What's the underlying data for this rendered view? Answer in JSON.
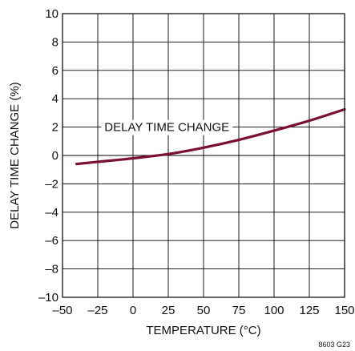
{
  "figure_id": "8603 G23",
  "chart_data": {
    "type": "line",
    "xlabel": "TEMPERATURE (°C)",
    "ylabel": "DELAY TIME CHANGE (%)",
    "xlim": [
      -50,
      150
    ],
    "ylim": [
      -10,
      10
    ],
    "x_ticks": [
      -50,
      -25,
      0,
      25,
      50,
      75,
      100,
      125,
      150
    ],
    "y_ticks": [
      -10,
      -8,
      -6,
      -4,
      -2,
      0,
      2,
      4,
      6,
      8,
      10
    ],
    "x_tick_labels": [
      "–50",
      "–25",
      "0",
      "25",
      "50",
      "75",
      "100",
      "125",
      "150"
    ],
    "y_tick_labels": [
      "–10",
      "–8",
      "–6",
      "–4",
      "–2",
      "0",
      "2",
      "4",
      "6",
      "8",
      "10"
    ],
    "grid": true,
    "series": [
      {
        "name": "DELAY TIME CHANGE",
        "color": "#7a1030",
        "x": [
          -40,
          -25,
          0,
          25,
          50,
          75,
          100,
          125,
          150
        ],
        "y": [
          -0.6,
          -0.45,
          -0.2,
          0.1,
          0.55,
          1.1,
          1.75,
          2.45,
          3.25
        ]
      }
    ],
    "annotation": {
      "text": "DELAY TIME CHANGE",
      "at": [
        24,
        2.0
      ]
    }
  }
}
